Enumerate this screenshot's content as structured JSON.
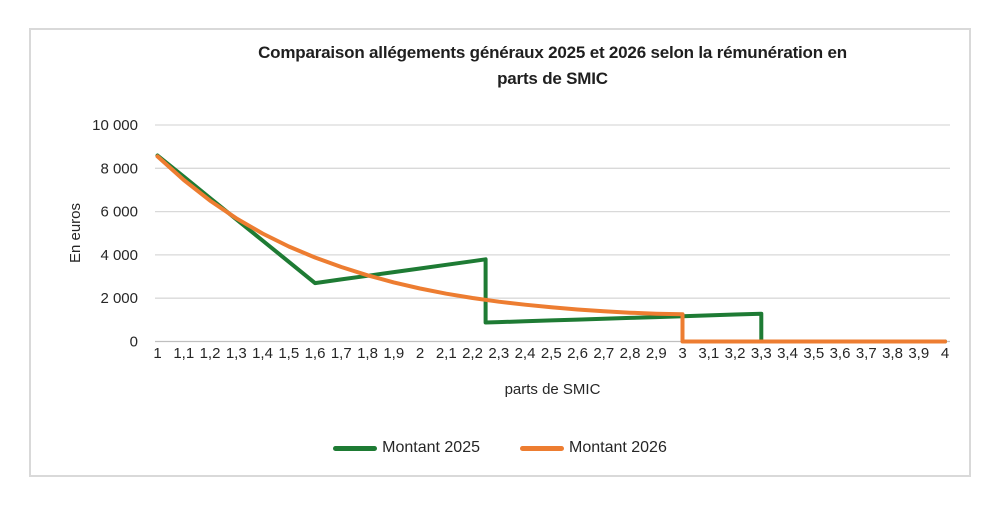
{
  "chart": {
    "title_line1": "Comparaison allégements généraux 2025 et 2026 selon la rémunération en",
    "title_line2": "parts de SMIC"
  },
  "colors": {
    "grid": "#D9D9D9",
    "axis": "#BFBFBF",
    "text": "#262626",
    "frame_border": "#D9D9D9",
    "series_2025": "#1E7B34",
    "series_2026": "#ED7D31"
  },
  "chart_data": {
    "type": "line",
    "title": "Comparaison allégements généraux 2025 et 2026 selon la rémunération en parts de SMIC",
    "grid": true,
    "legend_position": "bottom",
    "x_axis": {
      "label": "parts de SMIC",
      "min": 1,
      "max": 4,
      "tick_step": 0.1,
      "tick_labels": [
        "1",
        "1,1",
        "1,2",
        "1,3",
        "1,4",
        "1,5",
        "1,6",
        "1,7",
        "1,8",
        "1,9",
        "2",
        "2,1",
        "2,2",
        "2,3",
        "2,4",
        "2,5",
        "2,6",
        "2,7",
        "2,8",
        "2,9",
        "3",
        "3,1",
        "3,2",
        "3,3",
        "3,4",
        "3,5",
        "3,6",
        "3,7",
        "3,8",
        "3,9",
        "4"
      ]
    },
    "y_axis": {
      "label": "En euros",
      "min": 0,
      "max": 10000,
      "ticks": [
        {
          "value": 0,
          "label": "0"
        },
        {
          "value": 2000,
          "label": "2 000"
        },
        {
          "value": 4000,
          "label": "4 000"
        },
        {
          "value": 6000,
          "label": "6 000"
        },
        {
          "value": 8000,
          "label": "8 000"
        },
        {
          "value": 10000,
          "label": "10 000"
        }
      ]
    },
    "series": [
      {
        "name": "Montant 2025",
        "color": "#1E7B34",
        "points": [
          [
            1.0,
            8592
          ],
          [
            1.1,
            7610
          ],
          [
            1.2,
            6628
          ],
          [
            1.3,
            5646
          ],
          [
            1.4,
            4663
          ],
          [
            1.5,
            3681
          ],
          [
            1.6,
            2699
          ],
          [
            1.7,
            2867
          ],
          [
            1.8,
            3035
          ],
          [
            1.9,
            3204
          ],
          [
            2.0,
            3373
          ],
          [
            2.1,
            3541
          ],
          [
            2.2,
            3710
          ],
          [
            2.25,
            3795
          ],
          [
            2.25,
            876
          ],
          [
            2.3,
            895
          ],
          [
            2.4,
            934
          ],
          [
            2.5,
            973
          ],
          [
            2.6,
            1012
          ],
          [
            2.7,
            1051
          ],
          [
            2.8,
            1090
          ],
          [
            2.9,
            1129
          ],
          [
            3.0,
            1168
          ],
          [
            3.1,
            1206
          ],
          [
            3.2,
            1245
          ],
          [
            3.3,
            1284
          ],
          [
            3.3,
            0
          ],
          [
            3.4,
            0
          ],
          [
            3.5,
            0
          ],
          [
            3.6,
            0
          ],
          [
            3.7,
            0
          ],
          [
            3.8,
            0
          ],
          [
            3.9,
            0
          ],
          [
            4.0,
            0
          ]
        ]
      },
      {
        "name": "Montant 2026",
        "color": "#ED7D31",
        "points": [
          [
            1.0,
            8550
          ],
          [
            1.1,
            7460
          ],
          [
            1.2,
            6510
          ],
          [
            1.3,
            5690
          ],
          [
            1.4,
            4990
          ],
          [
            1.5,
            4390
          ],
          [
            1.6,
            3880
          ],
          [
            1.7,
            3440
          ],
          [
            1.8,
            3060
          ],
          [
            1.9,
            2730
          ],
          [
            2.0,
            2450
          ],
          [
            2.1,
            2210
          ],
          [
            2.2,
            2010
          ],
          [
            2.3,
            1840
          ],
          [
            2.4,
            1700
          ],
          [
            2.5,
            1580
          ],
          [
            2.6,
            1480
          ],
          [
            2.7,
            1395
          ],
          [
            2.8,
            1330
          ],
          [
            2.9,
            1285
          ],
          [
            3.0,
            1255
          ],
          [
            3.0,
            0
          ],
          [
            3.1,
            0
          ],
          [
            3.2,
            0
          ],
          [
            3.3,
            0
          ],
          [
            3.4,
            0
          ],
          [
            3.5,
            0
          ],
          [
            3.6,
            0
          ],
          [
            3.7,
            0
          ],
          [
            3.8,
            0
          ],
          [
            3.9,
            0
          ],
          [
            4.0,
            0
          ]
        ]
      }
    ]
  }
}
